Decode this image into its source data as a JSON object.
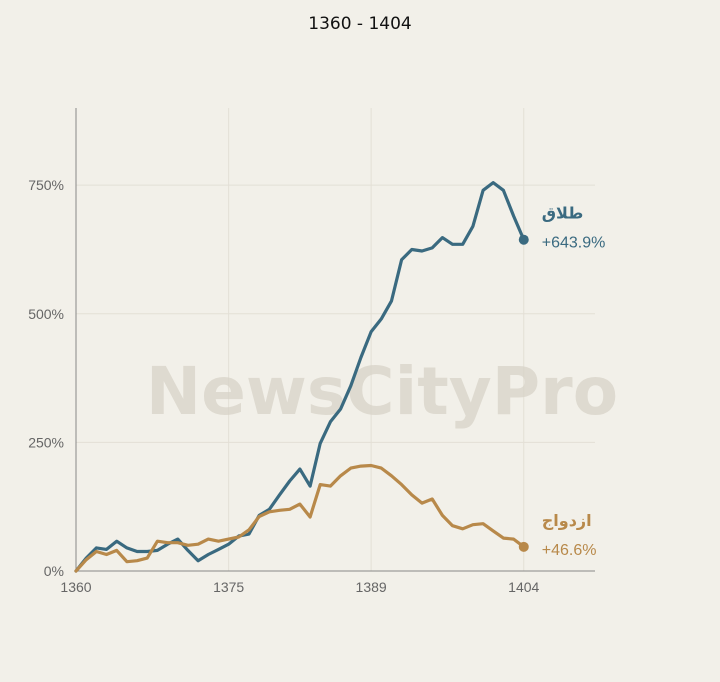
{
  "colors": {
    "background": "#f2f0e9",
    "grid": "#e3dfd6",
    "axis": "#888888",
    "divorce": "#3a6a80",
    "marriage": "#b8894a",
    "watermark": "#d8d3c8"
  },
  "watermark": "NewsCityPro",
  "chart_data": {
    "type": "line",
    "title": "1360 - 1404",
    "xlabel": "",
    "ylabel": "",
    "xlim": [
      1360,
      1411
    ],
    "ylim": [
      0,
      900
    ],
    "x_ticks": [
      {
        "value": 1360,
        "label": "1360"
      },
      {
        "value": 1375,
        "label": "1375"
      },
      {
        "value": 1389,
        "label": "1389"
      },
      {
        "value": 1404,
        "label": "1404"
      }
    ],
    "y_ticks": [
      {
        "value": 0,
        "label": "0%"
      },
      {
        "value": 250,
        "label": "250%"
      },
      {
        "value": 500,
        "label": "500%"
      },
      {
        "value": 750,
        "label": "750%"
      }
    ],
    "grid": true,
    "series": [
      {
        "name": "طلاق",
        "change_label": "+643.9%",
        "color": "#3a6a80",
        "x": [
          1360,
          1361,
          1362,
          1363,
          1364,
          1365,
          1366,
          1367,
          1368,
          1369,
          1370,
          1371,
          1372,
          1373,
          1374,
          1375,
          1376,
          1377,
          1378,
          1379,
          1380,
          1381,
          1382,
          1383,
          1384,
          1385,
          1386,
          1387,
          1388,
          1389,
          1390,
          1391,
          1392,
          1393,
          1394,
          1395,
          1396,
          1397,
          1398,
          1399,
          1400,
          1401,
          1402,
          1403,
          1404
        ],
        "values": [
          0,
          25,
          45,
          42,
          58,
          45,
          38,
          38,
          40,
          52,
          62,
          40,
          20,
          32,
          42,
          52,
          68,
          72,
          108,
          120,
          148,
          175,
          198,
          165,
          248,
          290,
          315,
          360,
          415,
          465,
          490,
          525,
          605,
          625,
          622,
          628,
          648,
          635,
          635,
          670,
          740,
          755,
          740,
          690,
          644
        ]
      },
      {
        "name": "ازدواج",
        "change_label": "+46.6%",
        "color": "#b8894a",
        "x": [
          1360,
          1361,
          1362,
          1363,
          1364,
          1365,
          1366,
          1367,
          1368,
          1369,
          1370,
          1371,
          1372,
          1373,
          1374,
          1375,
          1376,
          1377,
          1378,
          1379,
          1380,
          1381,
          1382,
          1383,
          1384,
          1385,
          1386,
          1387,
          1388,
          1389,
          1390,
          1391,
          1392,
          1393,
          1394,
          1395,
          1396,
          1397,
          1398,
          1399,
          1400,
          1401,
          1402,
          1403,
          1404
        ],
        "values": [
          0,
          22,
          38,
          32,
          40,
          18,
          20,
          25,
          58,
          55,
          55,
          50,
          52,
          62,
          58,
          62,
          66,
          80,
          106,
          115,
          118,
          120,
          130,
          105,
          168,
          165,
          185,
          200,
          204,
          205,
          200,
          185,
          168,
          148,
          132,
          140,
          108,
          88,
          82,
          90,
          92,
          78,
          64,
          62,
          47
        ]
      }
    ]
  }
}
